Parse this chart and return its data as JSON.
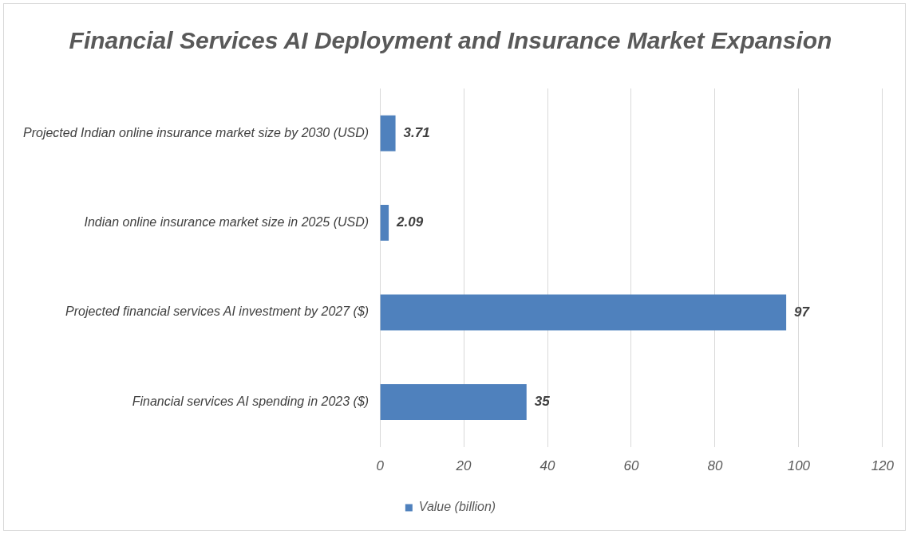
{
  "chart_data": {
    "type": "bar",
    "orientation": "horizontal",
    "title": "Financial Services AI Deployment and Insurance Market Expansion",
    "categories": [
      "Projected Indian online insurance market size by 2030 (USD)",
      "Indian online insurance market size in 2025 (USD)",
      "Projected financial services AI investment by 2027 ($)",
      "Financial services AI spending in 2023 ($)"
    ],
    "series": [
      {
        "name": "Value (billion)",
        "color": "#4f81bd",
        "values": [
          3.71,
          2.09,
          97,
          35
        ]
      }
    ],
    "xlim": [
      0,
      120
    ],
    "xticks": [
      0,
      20,
      40,
      60,
      80,
      100,
      120
    ],
    "grid": "x",
    "legend": "bottom",
    "data_labels": true
  }
}
